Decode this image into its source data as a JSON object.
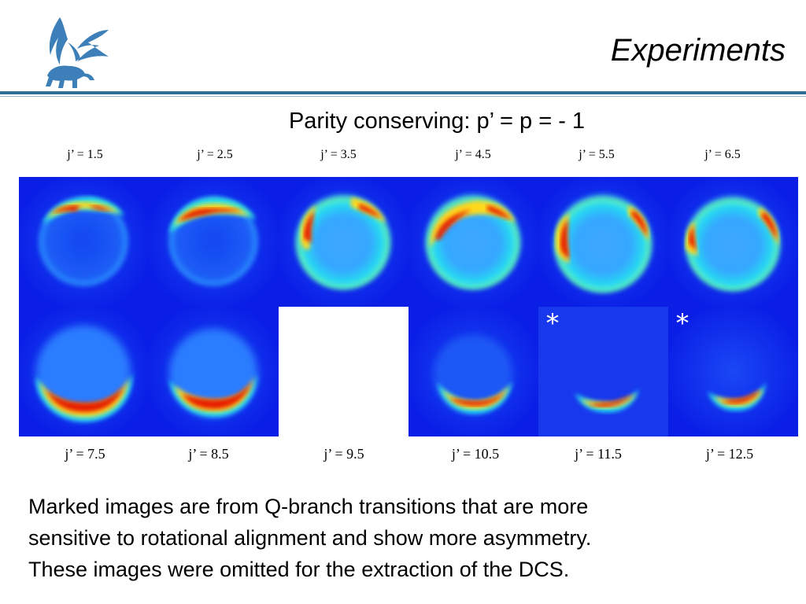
{
  "slide": {
    "title": "Experiments",
    "subtitle": "Parity conserving: p’ = p = - 1",
    "note_lines": [
      "Marked images are from Q-branch transitions that are more",
      "sensitive to rotational alignment and show more asymmetry.",
      "These images were omitted for the extraction of the DCS."
    ]
  },
  "top_labels": [
    "j’ = 1.5",
    "j’ = 2.5",
    "j’ = 3.5",
    "j’ = 4.5",
    "j’ = 5.5",
    "j’ = 6.5"
  ],
  "bottom_labels": [
    "j’ = 7.5",
    "j’ = 8.5",
    "j’ = 9.5",
    "j’ = 10.5",
    "j’ = 11.5",
    "j’ = 12.5"
  ],
  "marker_symbol": "*",
  "images": {
    "row1": [
      "j’ = 1.5 image",
      "j’ = 2.5 image",
      "j’ = 3.5 image",
      "j’ = 4.5 image",
      "j’ = 5.5 image",
      "j’ = 6.5 image"
    ],
    "row2": [
      "j’ = 7.5 image",
      "j’ = 8.5 image",
      "",
      "j’ = 10.5 image",
      "j’ = 11.5 image (marked)",
      "j’ = 12.5 image (marked)"
    ]
  },
  "colors": {
    "rule": "#2d6e96",
    "logo": "#3d7fb8",
    "image_background": "#0a1ee6"
  }
}
